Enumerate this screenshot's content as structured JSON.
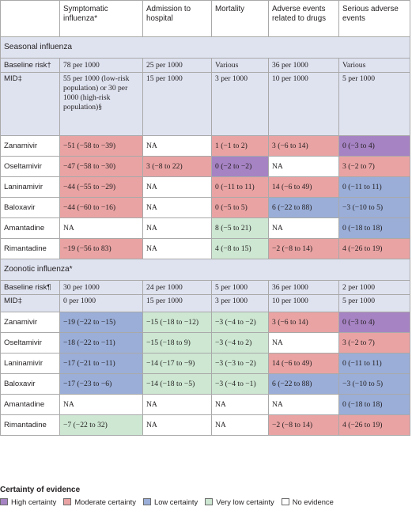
{
  "header": [
    "",
    "Symptomatic influenza*",
    "Admission to hospital",
    "Mortality",
    "Adverse events related to drugs",
    "Serious adverse events"
  ],
  "sections": [
    {
      "title": "Seasonal influenza",
      "baseline": {
        "label": "Baseline risk†",
        "values": [
          "78 per 1000",
          "25 per 1000",
          "Various",
          "36 per 1000",
          "Various"
        ]
      },
      "mid": {
        "label": "MID‡",
        "values": [
          "55 per 1000 (low-risk population) or 30 per 1000 (high-risk population)§",
          "15 per 1000",
          "3 per 1000",
          "10 per 1000",
          "5 per 1000"
        ]
      },
      "drugs": [
        {
          "name": "Zanamivir",
          "cells": [
            [
              "−51 (−58 to −39)",
              "moderate"
            ],
            [
              "NA",
              "none"
            ],
            [
              "1 (−1 to 2)",
              "moderate"
            ],
            [
              "3 (−6 to 14)",
              "moderate"
            ],
            [
              "0 (−3 to 4)",
              "high"
            ]
          ]
        },
        {
          "name": "Oseltamivir",
          "cells": [
            [
              "−47 (−58 to −30)",
              "moderate"
            ],
            [
              "3 (−8 to 22)",
              "moderate"
            ],
            [
              "0 (−2 to −2)",
              "high"
            ],
            [
              "NA",
              "none"
            ],
            [
              "3 (−2 to 7)",
              "moderate"
            ]
          ]
        },
        {
          "name": "Laninamivir",
          "cells": [
            [
              "−44 (−55 to −29)",
              "moderate"
            ],
            [
              "NA",
              "none"
            ],
            [
              "0 (−11 to 11)",
              "moderate"
            ],
            [
              "14 (−6 to 49)",
              "moderate"
            ],
            [
              "0 (−11 to 11)",
              "low"
            ]
          ]
        },
        {
          "name": "Baloxavir",
          "cells": [
            [
              "−44 (−60 to −16)",
              "moderate"
            ],
            [
              "NA",
              "none"
            ],
            [
              "0 (−5 to 5)",
              "moderate"
            ],
            [
              "6 (−22 to 88)",
              "low"
            ],
            [
              "−3 (−10 to 5)",
              "low"
            ]
          ]
        },
        {
          "name": "Amantadine",
          "cells": [
            [
              "NA",
              "none"
            ],
            [
              "NA",
              "none"
            ],
            [
              "8 (−5 to 21)",
              "verylow"
            ],
            [
              "NA",
              "none"
            ],
            [
              "0 (−18 to 18)",
              "low"
            ]
          ]
        },
        {
          "name": "Rimantadine",
          "cells": [
            [
              "−19 (−56 to 83)",
              "moderate"
            ],
            [
              "NA",
              "none"
            ],
            [
              "4 (−8 to 15)",
              "verylow"
            ],
            [
              "−2 (−8 to 14)",
              "moderate"
            ],
            [
              "4 (−26 to 19)",
              "moderate"
            ]
          ]
        }
      ]
    },
    {
      "title": "Zoonotic influenza*",
      "baseline": {
        "label": "Baseline risk¶",
        "values": [
          "30 per 1000",
          "24 per 1000",
          "5 per 1000",
          "36 per 1000",
          "2 per 1000"
        ]
      },
      "mid": {
        "label": "MID‡",
        "values": [
          "0 per 1000",
          "15 per 1000",
          "3 per 1000",
          "10 per 1000",
          "5 per 1000"
        ]
      },
      "drugs": [
        {
          "name": "Zanamivir",
          "cells": [
            [
              "−19 (−22 to −15)",
              "low"
            ],
            [
              "−15 (−18 to −12)",
              "verylow"
            ],
            [
              "−3 (−4 to −2)",
              "verylow"
            ],
            [
              "3 (−6 to 14)",
              "moderate"
            ],
            [
              "0 (−3 to 4)",
              "high"
            ]
          ]
        },
        {
          "name": "Oseltamivir",
          "cells": [
            [
              "−18 (−22 to −11)",
              "low"
            ],
            [
              "−15 (−18 to 9)",
              "verylow"
            ],
            [
              "−3 (−4 to 2)",
              "verylow"
            ],
            [
              "NA",
              "none"
            ],
            [
              "3 (−2 to 7)",
              "moderate"
            ]
          ]
        },
        {
          "name": "Laninamivir",
          "cells": [
            [
              "−17 (−21 to −11)",
              "low"
            ],
            [
              "−14 (−17 to −9)",
              "verylow"
            ],
            [
              "−3 (−3 to −2)",
              "verylow"
            ],
            [
              "14 (−6 to 49)",
              "moderate"
            ],
            [
              "0 (−11 to 11)",
              "low"
            ]
          ]
        },
        {
          "name": "Baloxavir",
          "cells": [
            [
              "−17 (−23 to −6)",
              "low"
            ],
            [
              "−14 (−18 to −5)",
              "verylow"
            ],
            [
              "−3 (−4 to −1)",
              "verylow"
            ],
            [
              "6 (−22 to 88)",
              "low"
            ],
            [
              "−3 (−10 to 5)",
              "low"
            ]
          ]
        },
        {
          "name": "Amantadine",
          "cells": [
            [
              "NA",
              "none"
            ],
            [
              "NA",
              "none"
            ],
            [
              "NA",
              "none"
            ],
            [
              "NA",
              "none"
            ],
            [
              "0 (−18 to 18)",
              "low"
            ]
          ]
        },
        {
          "name": "Rimantadine",
          "cells": [
            [
              "−7 (−22 to 32)",
              "verylow"
            ],
            [
              "NA",
              "none"
            ],
            [
              "NA",
              "none"
            ],
            [
              "−2 (−8 to 14)",
              "moderate"
            ],
            [
              "4 (−26 to 19)",
              "moderate"
            ]
          ]
        }
      ]
    }
  ],
  "legend": {
    "title": "Certainty of evidence",
    "items": [
      {
        "key": "high",
        "label": "High certainty",
        "color": "#a683c3"
      },
      {
        "key": "moderate",
        "label": "Moderate certainty",
        "color": "#e9a3a3"
      },
      {
        "key": "low",
        "label": "Low certainty",
        "color": "#9aaed8"
      },
      {
        "key": "verylow",
        "label": "Very low certainty",
        "color": "#cde7d2"
      },
      {
        "key": "none",
        "label": "No evidence",
        "color": "#ffffff"
      }
    ]
  }
}
